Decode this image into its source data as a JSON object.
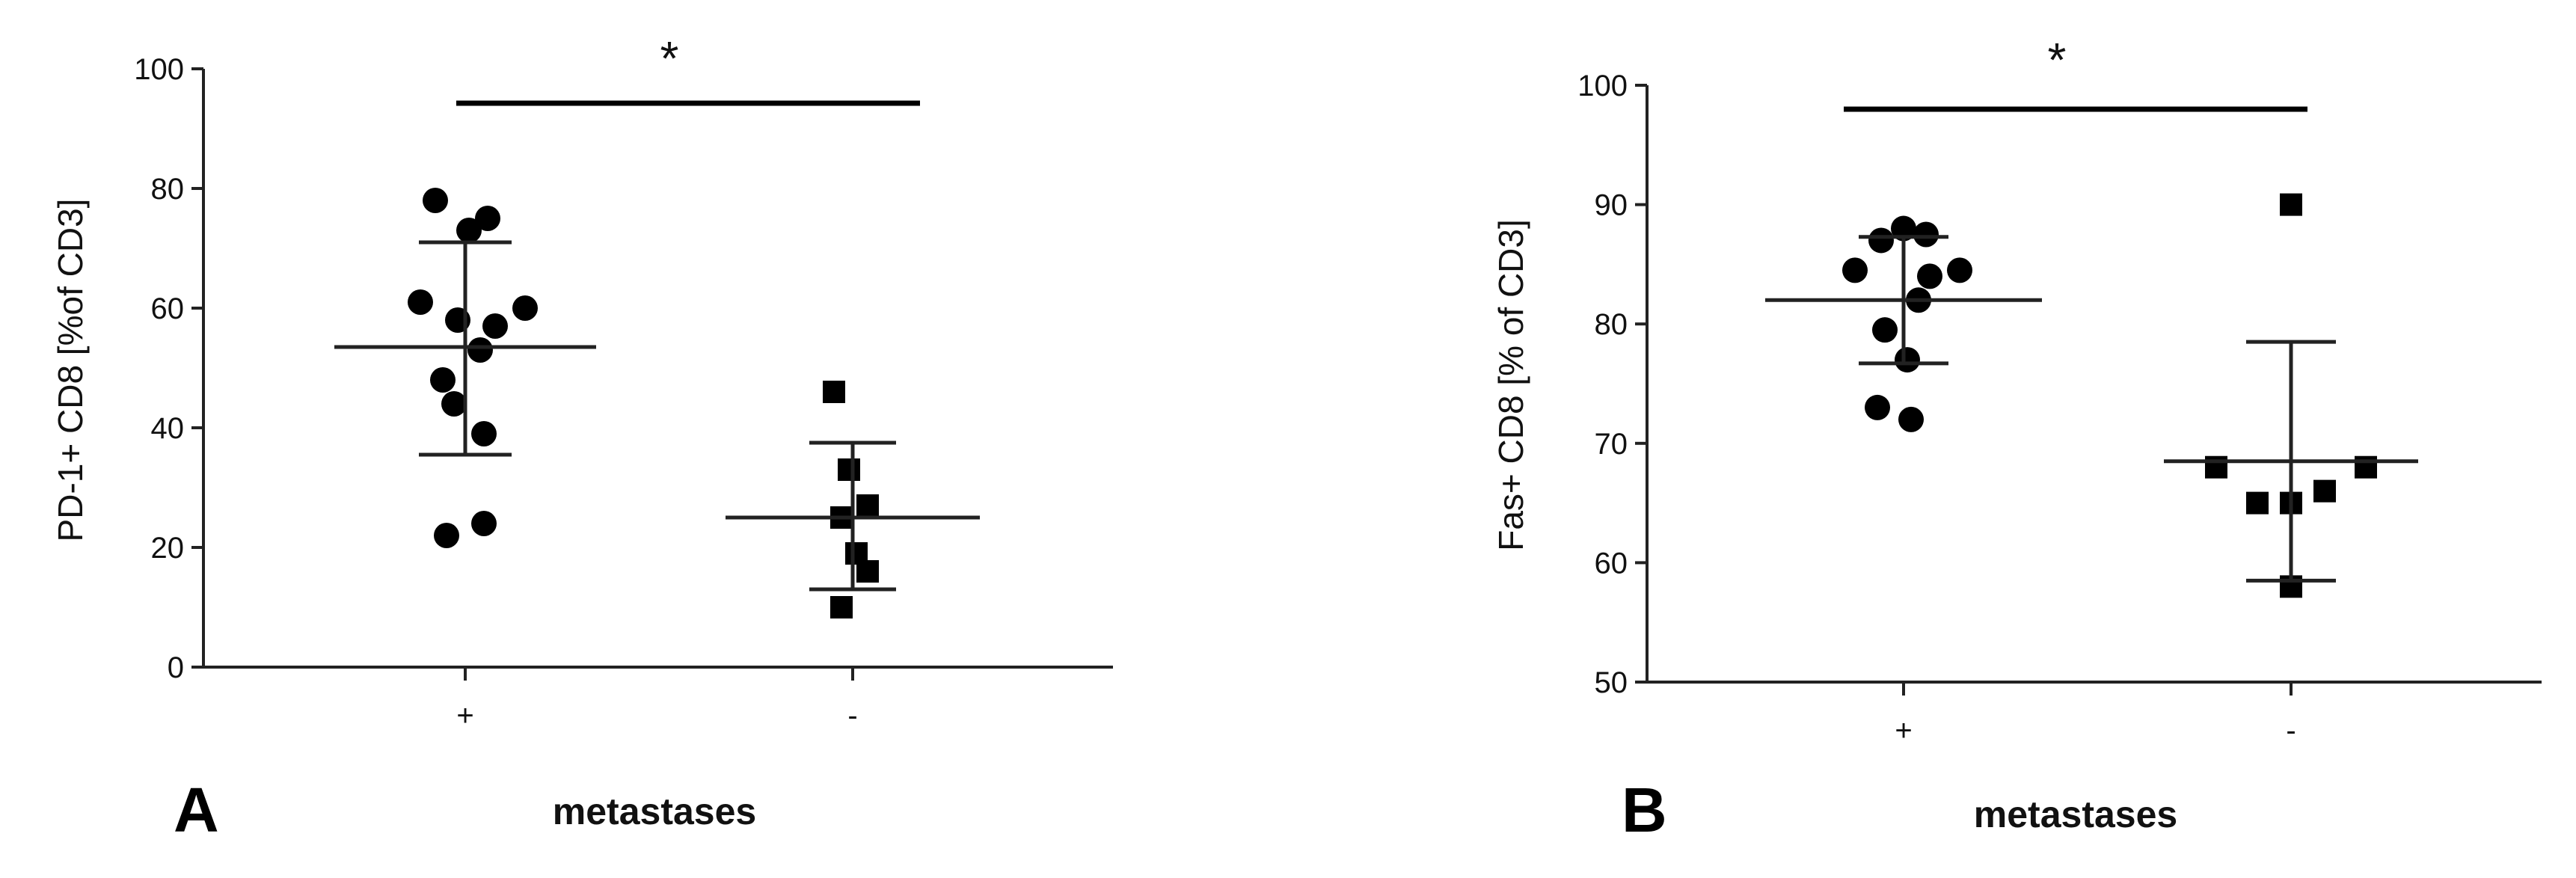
{
  "chart_data": [
    {
      "type": "scatter",
      "panel_label": "A",
      "categories": [
        "+",
        "-"
      ],
      "xlabel": "metastases",
      "ylabel": "PD-1+ CD8 [%of CD3]",
      "ylim": [
        0,
        100
      ],
      "yticks": [
        "0",
        "20",
        "40",
        "60",
        "80",
        "100"
      ],
      "significance": "*",
      "series": [
        {
          "category": "+",
          "marker": "circle",
          "values": [
            78,
            75,
            73,
            61,
            60,
            58,
            57,
            53,
            48,
            44,
            39,
            24,
            22
          ],
          "mean": 53.5,
          "sd_upper": 71,
          "sd_lower": 35.5
        },
        {
          "category": "-",
          "marker": "square",
          "values": [
            46,
            33,
            27,
            25,
            19,
            16,
            10
          ],
          "mean": 25,
          "sd_upper": 37.5,
          "sd_lower": 13
        }
      ]
    },
    {
      "type": "scatter",
      "panel_label": "B",
      "categories": [
        "+",
        "-"
      ],
      "xlabel": "metastases",
      "ylabel": "Fas+ CD8  [% of CD3]",
      "ylim": [
        50,
        100
      ],
      "yticks": [
        "50",
        "60",
        "70",
        "80",
        "90",
        "100"
      ],
      "significance": "*",
      "series": [
        {
          "category": "+",
          "marker": "circle",
          "values": [
            88,
            87.5,
            87,
            84.5,
            84.5,
            84,
            82,
            79.5,
            77,
            73,
            72
          ],
          "mean": 82,
          "sd_upper": 87.3,
          "sd_lower": 76.7
        },
        {
          "category": "-",
          "marker": "square",
          "values": [
            90,
            68,
            68,
            66,
            65,
            65,
            58
          ],
          "mean": 68.5,
          "sd_upper": 78.5,
          "sd_lower": 58.5
        }
      ]
    }
  ]
}
